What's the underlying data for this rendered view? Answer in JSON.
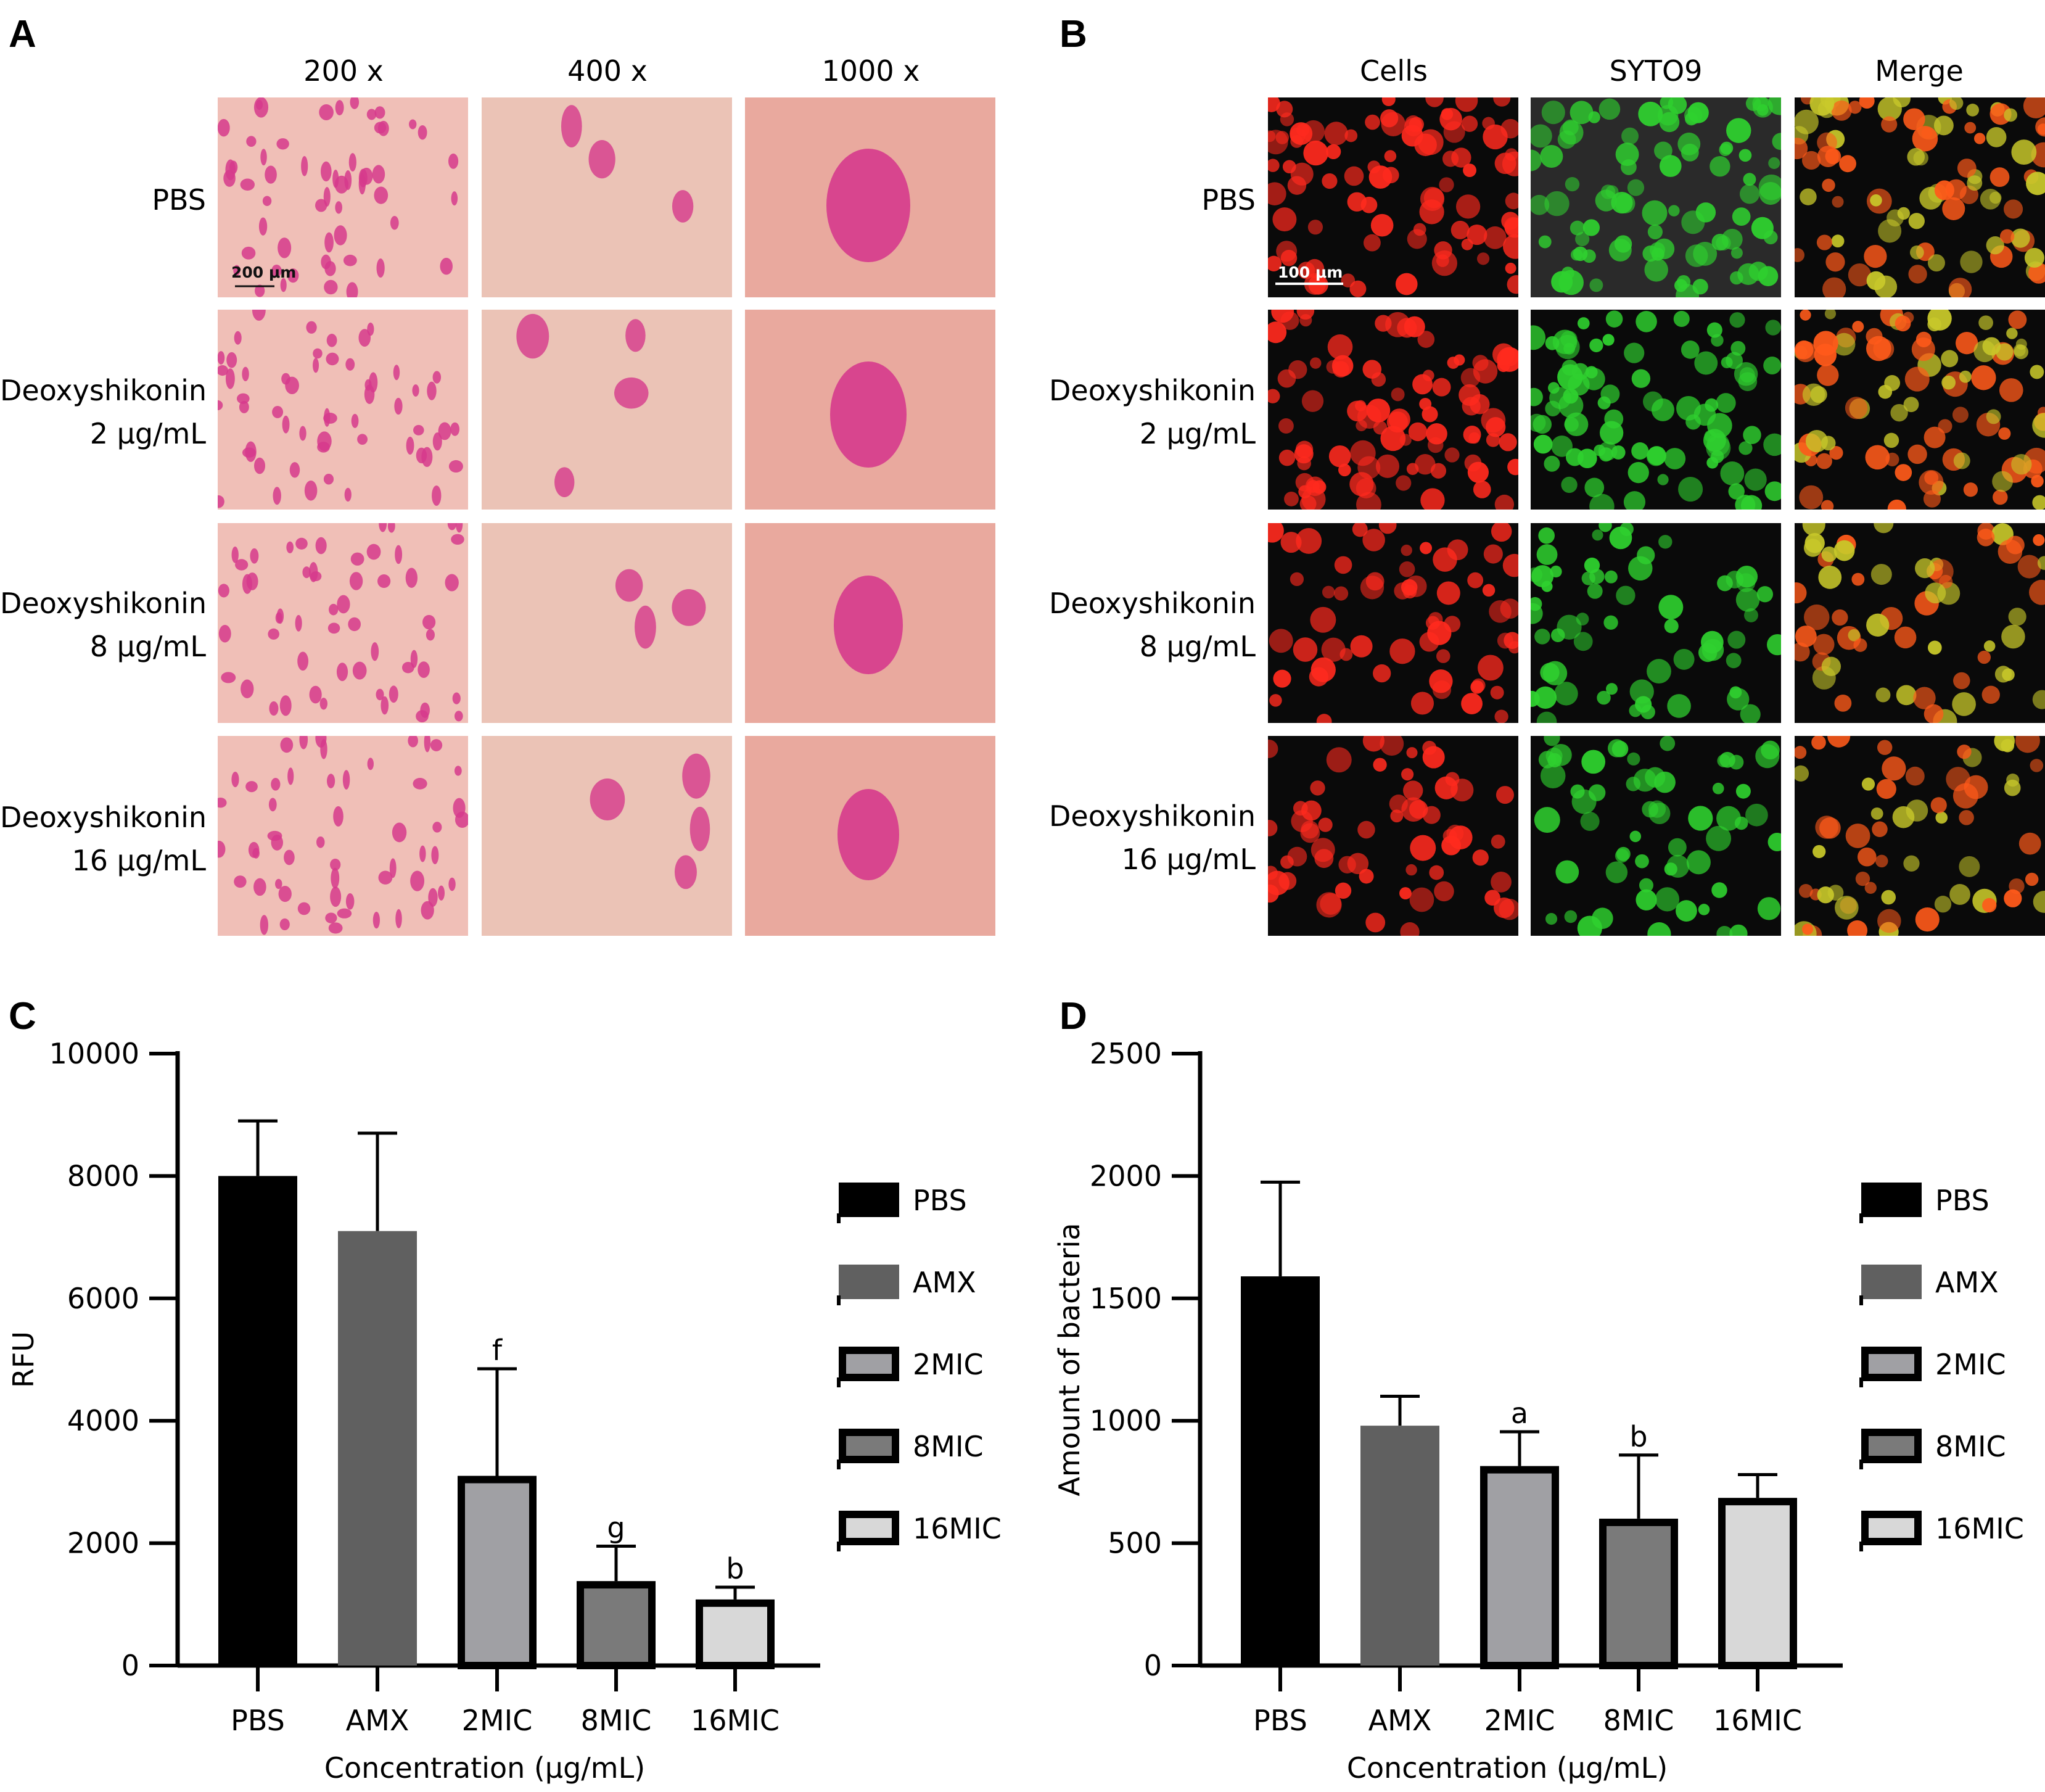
{
  "panelA": {
    "letter": "A",
    "columns": [
      "200 x",
      "400 x",
      "1000 x"
    ],
    "rows": [
      {
        "line1": "PBS",
        "line2": ""
      },
      {
        "line1": "Deoxyshikonin",
        "line2": "2 μg/mL"
      },
      {
        "line1": "Deoxyshikonin",
        "line2": "8 μg/mL"
      },
      {
        "line1": "Deoxyshikonin",
        "line2": "16 μg/mL"
      }
    ],
    "scale_bar": "200 μm",
    "colors": {
      "background": "#eab0aa",
      "stain": "#d63a8c"
    }
  },
  "panelB": {
    "letter": "B",
    "columns": [
      "Cells",
      "SYTO9",
      "Merge"
    ],
    "rows": [
      {
        "line1": "PBS",
        "line2": ""
      },
      {
        "line1": "Deoxyshikonin",
        "line2": "2 μg/mL"
      },
      {
        "line1": "Deoxyshikonin",
        "line2": "8 μg/mL"
      },
      {
        "line1": "Deoxyshikonin",
        "line2": "16 μg/mL"
      }
    ],
    "scale_bar": "100 μm",
    "colors": {
      "red": "#ff2a1e",
      "green": "#2fd12f",
      "merge": "#e8a020"
    }
  },
  "chart_data": [
    {
      "id": "C",
      "letter": "C",
      "type": "bar",
      "categories": [
        "PBS",
        "AMX",
        "2MIC",
        "8MIC",
        "16MIC"
      ],
      "values": [
        8000,
        7100,
        3100,
        1380,
        1080
      ],
      "errors": [
        900,
        1600,
        1750,
        570,
        200
      ],
      "annotations": [
        "",
        "",
        "f",
        "g",
        "b"
      ],
      "xlabel": "Concentration (μg/mL)",
      "ylabel": "RFU",
      "ylim": [
        0,
        10000
      ],
      "yticks": [
        0,
        2000,
        4000,
        6000,
        8000,
        10000
      ],
      "ytick_labels": [
        "0",
        "2000",
        "4000",
        "6000",
        "8000",
        "10000"
      ],
      "legend": [
        "PBS",
        "AMX",
        "2MIC",
        "8MIC",
        "16MIC"
      ],
      "legend_position": "right",
      "colors": [
        "#000000",
        "#606060",
        "#a0a0a4",
        "#7a7a7a",
        "#d8d8d8"
      ]
    },
    {
      "id": "D",
      "letter": "D",
      "type": "bar",
      "categories": [
        "PBS",
        "AMX",
        "2MIC",
        "8MIC",
        "16MIC"
      ],
      "values": [
        1590,
        980,
        815,
        600,
        685
      ],
      "errors": [
        385,
        120,
        140,
        260,
        95
      ],
      "annotations": [
        "",
        "",
        "a",
        "b",
        ""
      ],
      "xlabel": "Concentration (μg/mL)",
      "ylabel": "Amount of bacteria",
      "ylim": [
        0,
        2500
      ],
      "yticks": [
        0,
        500,
        1000,
        1500,
        2000,
        2500
      ],
      "ytick_labels": [
        "0",
        "500",
        "1000",
        "1500",
        "2000",
        "2500"
      ],
      "legend": [
        "PBS",
        "AMX",
        "2MIC",
        "8MIC",
        "16MIC"
      ],
      "legend_position": "right",
      "colors": [
        "#000000",
        "#606060",
        "#a0a0a4",
        "#7a7a7a",
        "#d8d8d8"
      ]
    }
  ]
}
